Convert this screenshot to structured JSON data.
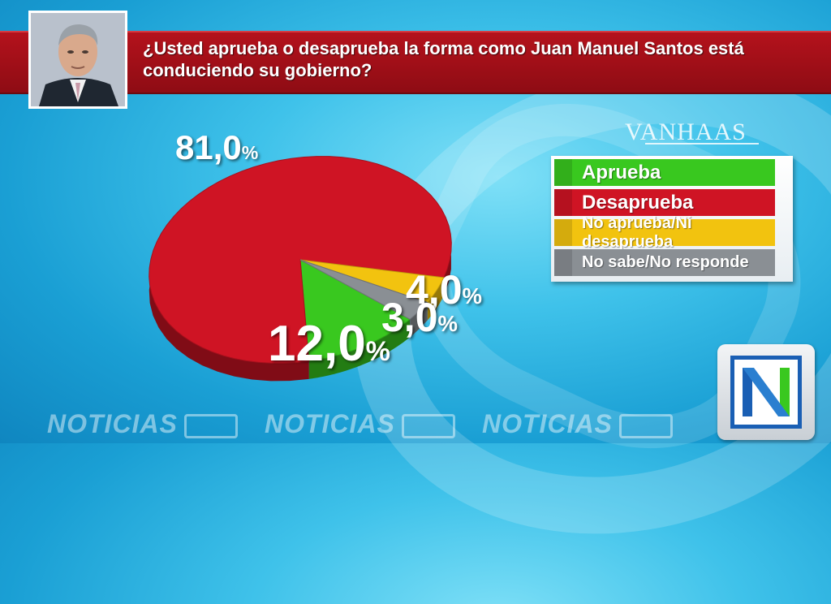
{
  "header": {
    "question": "¿Usted aprueba o desaprueba la forma como Juan Manuel Santos está conduciendo su gobierno?"
  },
  "colors": {
    "aprueba": "#39c81f",
    "desaprueba": "#cf1424",
    "no_aprueba_ni_desaprueba": "#f2c30f",
    "no_sabe": "#8a8f94",
    "title_bar": "#a3101a"
  },
  "chart_data": {
    "type": "pie",
    "categories": [
      "Aprueba",
      "Desaprueba",
      "No aprueba/Ni desaprueba",
      "No sabe/No responde"
    ],
    "values": [
      12.0,
      81.0,
      4.0,
      3.0
    ],
    "labels": [
      "12,0",
      "81,0",
      "4,0",
      "3,0"
    ],
    "unit": "%",
    "legend_position": "right"
  },
  "legend": [
    {
      "label": "Aprueba"
    },
    {
      "label": "Desaprueba"
    },
    {
      "label": "No aprueba/Ni desaprueba"
    },
    {
      "label": "No sabe/No responde"
    }
  ],
  "branding": {
    "pollster": "VANHAAS",
    "channel_text": "NOTICIAS",
    "logo_letter": "N"
  }
}
